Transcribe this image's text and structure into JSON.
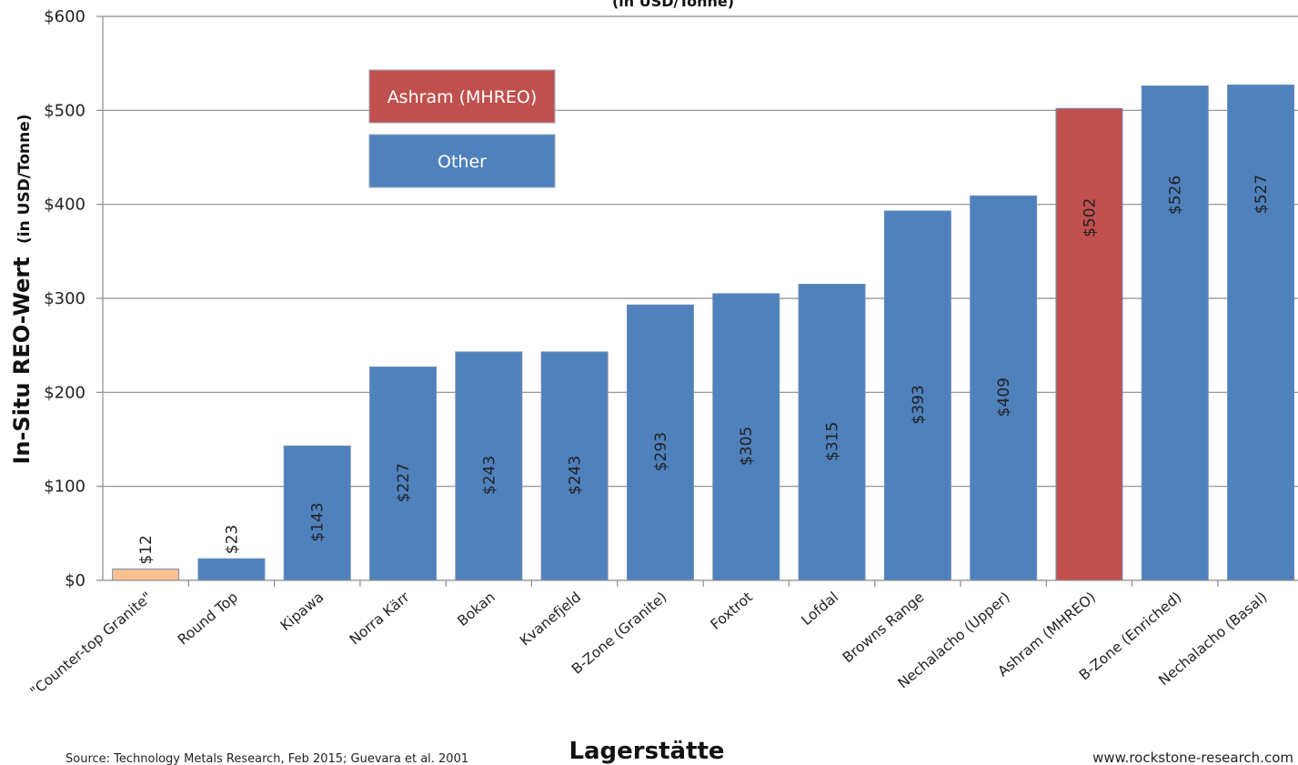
{
  "chart_data": {
    "type": "bar",
    "title_fragment": "(in USD/Tonne)",
    "ylabel_main": "In-Situ REO-Wert",
    "ylabel_unit": "(in USD/Tonne)",
    "xlabel": "Lagerstätte",
    "ylim": [
      0,
      600
    ],
    "yticks": [
      {
        "value": 0,
        "label": "$0"
      },
      {
        "value": 100,
        "label": "$100"
      },
      {
        "value": 200,
        "label": "$200"
      },
      {
        "value": 300,
        "label": "$300"
      },
      {
        "value": 400,
        "label": "$400"
      },
      {
        "value": 500,
        "label": "$500"
      },
      {
        "value": 600,
        "label": "$600"
      }
    ],
    "grid": true,
    "bars": [
      {
        "category": "\"Counter-top Granite\"",
        "value": 12,
        "label": "$12",
        "color": "#fac090"
      },
      {
        "category": "Round Top",
        "value": 23,
        "label": "$23",
        "color": "#4f81bd"
      },
      {
        "category": "Kipawa",
        "value": 143,
        "label": "$143",
        "color": "#4f81bd"
      },
      {
        "category": "Norra Kärr",
        "value": 227,
        "label": "$227",
        "color": "#4f81bd"
      },
      {
        "category": "Bokan",
        "value": 243,
        "label": "$243",
        "color": "#4f81bd"
      },
      {
        "category": "Kvanefjeld",
        "value": 243,
        "label": "$243",
        "color": "#4f81bd"
      },
      {
        "category": "B-Zone (Granite)",
        "value": 293,
        "label": "$293",
        "color": "#4f81bd"
      },
      {
        "category": "Foxtrot",
        "value": 305,
        "label": "$305",
        "color": "#4f81bd"
      },
      {
        "category": "Lofdal",
        "value": 315,
        "label": "$315",
        "color": "#4f81bd"
      },
      {
        "category": "Browns Range",
        "value": 393,
        "label": "$393",
        "color": "#4f81bd"
      },
      {
        "category": "Nechalacho (Upper)",
        "value": 409,
        "label": "$409",
        "color": "#4f81bd"
      },
      {
        "category": "Ashram (MHREO)",
        "value": 502,
        "label": "$502",
        "color": "#c0504d"
      },
      {
        "category": "B-Zone (Enriched)",
        "value": 526,
        "label": "$526",
        "color": "#4f81bd"
      },
      {
        "category": "Nechalacho (Basal)",
        "value": 527,
        "label": "$527",
        "color": "#4f81bd"
      }
    ],
    "legend": {
      "placement": "top-left",
      "items": [
        {
          "label": "Ashram (MHREO)",
          "color": "#c0504d"
        },
        {
          "label": "Other",
          "color": "#4f81bd"
        }
      ]
    },
    "source": "Source: Technology Metals Research, Feb 2015; Guevara et al. 2001",
    "watermark": "www.rockstone-research.com"
  }
}
